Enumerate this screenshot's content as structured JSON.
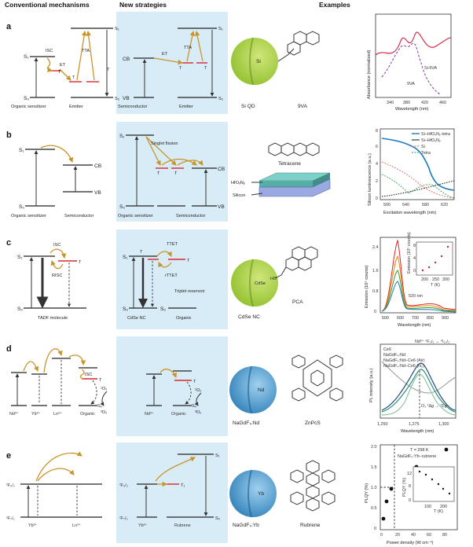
{
  "headers": {
    "conventional": "Conventional mechanisms",
    "new": "New strategies",
    "examples": "Examples"
  },
  "colors": {
    "panel_bg": "#d8ecf7",
    "energy_arrow": "#c8952b",
    "triplet": "#d9262c",
    "si_sphere": "#9fcc3a",
    "nd_sphere": "#3a8fc4"
  },
  "rows": {
    "a": {
      "letter": "a",
      "conv": {
        "s1": "S₁",
        "s0": "S₀",
        "isc": "ISC",
        "et": "ET",
        "tta": "TTA",
        "t1": "T",
        "t2": "T",
        "s1r": "S₁",
        "s0r": "S₀",
        "lbl1": "Organic sensitizer",
        "lbl2": "Emitter"
      },
      "new": {
        "cb": "CB",
        "vb": "VB",
        "et": "ET",
        "tta": "TTA",
        "t1": "T",
        "t2": "T",
        "s1": "S₁",
        "s0": "S₀",
        "lbl1": "Semiconductor",
        "lbl2": "Emitter"
      },
      "ex": {
        "core": "Si",
        "name1": "Si QD",
        "name2": "9VA"
      },
      "chart": {
        "ylabel": "Absorbance (normalized)",
        "xlabel": "Wavelength (nm)",
        "ticks": [
          "340",
          "380",
          "420",
          "460"
        ],
        "s1": "Si:9VA",
        "s2": "9VA"
      }
    },
    "b": {
      "letter": "b",
      "conv": {
        "s1": "S₁",
        "s0": "S₀",
        "cb": "CB",
        "vb": "VB",
        "lbl1": "Organic sensitizer",
        "lbl2": "Semiconductor"
      },
      "new": {
        "s1": "S₁",
        "s0": "S₀",
        "sf": "Singlet fission",
        "t1": "T",
        "t2": "T",
        "cb": "CB",
        "vb": "VB",
        "lbl1": "Organic sensitizer",
        "lbl2": "Semiconductor"
      },
      "ex": {
        "mol": "Tetracene",
        "layer1": "HfOₓNᵧ",
        "layer2": "Silicon"
      },
      "chart": {
        "ylabel": "Silicon luminescence (a.u.)",
        "xlabel": "Excitation wavelength (nm)",
        "ticks": [
          "500",
          "540",
          "580",
          "620"
        ],
        "yticks": [
          "0",
          "2",
          "4",
          "6",
          "8"
        ],
        "legend": [
          "Si–HfOₓNᵧ tetra",
          "Si–HfOₓNᵧ",
          "Si",
          "Tetra"
        ]
      }
    },
    "c": {
      "letter": "c",
      "conv": {
        "s1": "S₁",
        "s0": "S₀",
        "isc": "ISC",
        "risc": "RISC",
        "t": "T",
        "lbl": "TADF molecule"
      },
      "new": {
        "s1": "S₁",
        "s0": "S₀",
        "s0b": "S₀",
        "ttet": "TTET",
        "rttet": "rTTET",
        "t1": "T",
        "t2": "T",
        "res": "Triplet reservoir",
        "lbl1": "CdSe NC",
        "lbl2": "Organic"
      },
      "ex": {
        "core": "CdSe",
        "name1": "CdSe NC",
        "name2": "PCA",
        "ho": "HO"
      },
      "chart": {
        "ylabel": "Emission (10⁵ counts)",
        "xlabel": "Wavelength (nm)",
        "ticks": [
          "500",
          "600",
          "700",
          "800",
          "900"
        ],
        "yticks": [
          "0",
          "0.8",
          "1.6",
          "2.4"
        ],
        "peak": "520 nm",
        "inset_ylabel": "Emission (10⁵ counts)",
        "inset_xlabel": "T (K)",
        "inset_ticks": [
          "200",
          "250",
          "300"
        ],
        "inset_yticks": [
          "0",
          "4",
          "8"
        ]
      }
    },
    "d": {
      "letter": "d",
      "conv": {
        "nd": "Nd³⁺",
        "yb": "Yb³⁺",
        "ln": "Ln³⁺",
        "org": "Organic",
        "isc": "ISC",
        "t": "T",
        "o1": "¹O₂",
        "o3": "³O₂",
        "s0": "S₀"
      },
      "new": {
        "nd": "Nd³⁺",
        "org": "Organic",
        "t": "T",
        "o1": "¹O₂",
        "o3": "³O₂",
        "s0": "S₀"
      },
      "ex": {
        "core": "Nd",
        "name1": "NaGdF₄:Nd",
        "name2": "ZnPcS"
      },
      "chart": {
        "ylabel": "PL intensity (a.u.)",
        "xlabel": "Wavelength (nm)",
        "ticks": [
          "1,250",
          "1,275",
          "1,300"
        ],
        "transition": "Nd³⁺ ⁴F₃/₂ → ⁴I₁₃/₂",
        "o2": "O₂ ¹Δg → ³Σg⁻",
        "legend": [
          "Ce6",
          "NaGdF₄:Nd",
          "NaGdF₄:Nd–Ce6 (Air)",
          "NaGdF₄:Nd–Ce6 (N₂)"
        ]
      }
    },
    "e": {
      "letter": "e",
      "conv": {
        "f52": "²F₅/₂",
        "f72": "²F₇/₂",
        "yb": "Yb³⁺",
        "ln": "Ln³⁺"
      },
      "new": {
        "f52": "²F₅/₂",
        "f72": "²F₇/₂",
        "s1": "S₁",
        "s0": "S₀",
        "t1": "T₁",
        "yb": "Yb³⁺",
        "rub": "Rubrene"
      },
      "ex": {
        "core": "Yb",
        "name1": "NaGdF₄:Yb",
        "name2": "Rubrene"
      },
      "chart": {
        "ylabel": "PLQY (%)",
        "xlabel": "Power density (W cm⁻²)",
        "ticks": [
          "0",
          "20",
          "40",
          "60",
          "80"
        ],
        "yticks": [
          "0",
          "0.5",
          "1.0",
          "1.5",
          "2.0"
        ],
        "t1": "T = 298 K",
        "t2": "NaGdF₄:Yb–rubrene",
        "inset_ylabel": "PLQY (%)",
        "inset_xlabel": "T (K)",
        "inset_yticks": [
          "0",
          "8",
          "12"
        ],
        "inset_ticks": [
          "100",
          "200"
        ]
      }
    }
  }
}
